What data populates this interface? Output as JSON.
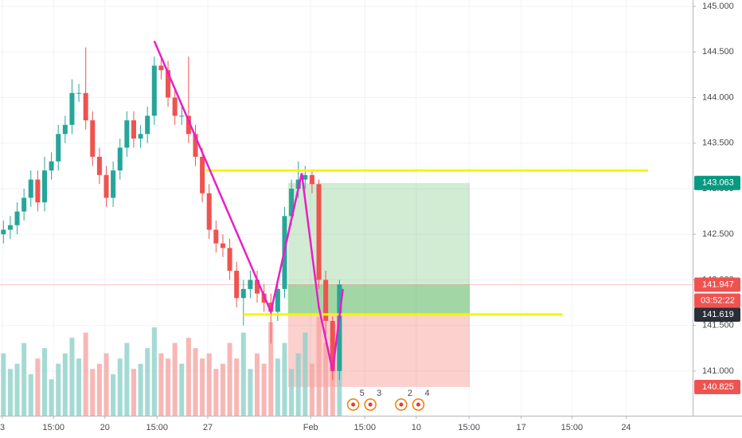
{
  "chart_data": {
    "type": "candlestick",
    "up_color": "#26a69a",
    "down_color": "#ef5350",
    "volume_up_color": "#8fd1c9",
    "volume_down_color": "#f5a5a3",
    "xlim": [
      -0.5,
      100.5
    ],
    "ylim": [
      140.51,
      145.07
    ],
    "vlim": [
      0,
      400
    ],
    "xticks": [
      {
        "value": -0.15,
        "label": "3"
      },
      {
        "value": 7.3,
        "label": "15:00"
      },
      {
        "value": 14.8,
        "label": "20"
      },
      {
        "value": 22.4,
        "label": "15:00"
      },
      {
        "value": 29.8,
        "label": "27"
      },
      {
        "value": 44.8,
        "label": "Feb"
      },
      {
        "value": 52.7,
        "label": "15:00"
      },
      {
        "value": 60.2,
        "label": "10"
      },
      {
        "value": 67.9,
        "label": "15:00"
      },
      {
        "value": 75.5,
        "label": "17"
      },
      {
        "value": 82.9,
        "label": "15:00"
      },
      {
        "value": 90.8,
        "label": "24"
      }
    ],
    "yticks": [
      {
        "value": 141,
        "label": "141.000"
      },
      {
        "value": 141.5,
        "label": "141.500"
      },
      {
        "value": 142,
        "label": "142.000"
      },
      {
        "value": 142.5,
        "label": "142.500"
      },
      {
        "value": 143,
        "label": "143.000"
      },
      {
        "value": 143.5,
        "label": "143.500"
      },
      {
        "value": 144,
        "label": "144.000"
      },
      {
        "value": 144.5,
        "label": "144.500"
      },
      {
        "value": 145,
        "label": "145.000"
      }
    ],
    "open": [
      142.5,
      142.55,
      142.6,
      142.75,
      142.9,
      143.1,
      142.85,
      143.2,
      143.3,
      143.6,
      143.7,
      144.05,
      144.05,
      143.75,
      143.35,
      143.15,
      142.9,
      143.2,
      143.45,
      143.75,
      143.55,
      143.6,
      143.8,
      144.35,
      144.3,
      144.0,
      143.8,
      143.8,
      143.6,
      143.35,
      142.95,
      142.55,
      142.4,
      142.35,
      142.1,
      141.8,
      141.9,
      142.0,
      141.85,
      141.75,
      141.65,
      141.9,
      142.7,
      143.0,
      143.1,
      143.15,
      143.05,
      142.0,
      141.55,
      141.0
    ],
    "high": [
      142.65,
      142.7,
      142.85,
      143.0,
      143.2,
      143.2,
      143.35,
      143.4,
      143.7,
      143.8,
      144.2,
      144.15,
      144.55,
      143.85,
      143.45,
      143.25,
      143.3,
      143.55,
      143.85,
      143.85,
      143.7,
      143.9,
      144.45,
      144.45,
      144.4,
      144.1,
      143.9,
      144.45,
      143.7,
      143.45,
      143.05,
      142.65,
      142.5,
      142.45,
      142.2,
      142.0,
      142.1,
      142.1,
      141.95,
      141.85,
      142.0,
      142.8,
      143.1,
      143.3,
      143.25,
      143.2,
      143.1,
      142.1,
      141.6,
      142.0
    ],
    "low": [
      142.4,
      142.45,
      142.5,
      142.65,
      142.8,
      142.75,
      142.75,
      143.1,
      143.2,
      143.5,
      143.6,
      143.95,
      143.65,
      143.25,
      143.05,
      142.8,
      142.8,
      143.1,
      143.35,
      143.45,
      143.45,
      143.5,
      143.7,
      144.2,
      143.9,
      143.7,
      143.7,
      143.5,
      143.25,
      142.85,
      142.45,
      142.3,
      142.25,
      142.0,
      141.7,
      141.5,
      141.8,
      141.75,
      141.65,
      141.3,
      141.55,
      141.8,
      142.6,
      142.9,
      143.0,
      142.95,
      141.9,
      141.3,
      140.9,
      140.9
    ],
    "close": [
      142.55,
      142.6,
      142.75,
      142.9,
      143.1,
      142.85,
      143.2,
      143.3,
      143.6,
      143.7,
      144.05,
      144.05,
      143.75,
      143.35,
      143.15,
      142.9,
      143.2,
      143.45,
      143.75,
      143.55,
      143.6,
      143.8,
      144.35,
      144.3,
      144.0,
      143.8,
      143.8,
      143.6,
      143.35,
      142.95,
      142.55,
      142.4,
      142.35,
      142.1,
      141.8,
      141.9,
      142.0,
      141.85,
      141.75,
      141.65,
      141.9,
      142.7,
      143.0,
      143.1,
      143.15,
      143.05,
      142.0,
      141.55,
      141.0,
      141.95
    ],
    "volume": [
      60,
      45,
      50,
      70,
      40,
      55,
      65,
      35,
      50,
      60,
      75,
      55,
      80,
      45,
      50,
      60,
      40,
      55,
      70,
      45,
      50,
      65,
      85,
      60,
      55,
      70,
      50,
      75,
      65,
      55,
      60,
      45,
      50,
      70,
      55,
      80,
      45,
      60,
      50,
      90,
      55,
      70,
      45,
      60,
      80,
      50,
      95,
      70,
      85,
      100
    ],
    "drawings": {
      "yellow_lines": [
        {
          "price": 143.2,
          "x_start": 29.5,
          "x_end": 94
        },
        {
          "price": 141.62,
          "x_start": 35,
          "x_end": 81.5
        }
      ],
      "pink_path": {
        "x": [
          22,
          39,
          43.5,
          46,
          48,
          49.5
        ],
        "price": [
          144.62,
          141.65,
          143.17,
          141.7,
          141.0,
          141.9
        ]
      },
      "position": {
        "x_start": 41.5,
        "x_end": 68,
        "entry": 141.619,
        "target": 143.063,
        "stop": 140.825,
        "current": 141.947
      }
    },
    "price_tags": [
      {
        "value": 143.063,
        "label": "143.063",
        "color": "#089981"
      },
      {
        "value": 141.947,
        "label": "141.947",
        "color": "#ef5350"
      },
      {
        "value": 141.619,
        "label": "141.619",
        "color": "#2a2e39"
      },
      {
        "value": 140.825,
        "label": "140.825",
        "color": "#ef5350"
      }
    ],
    "countdown": "03:52:22",
    "events": [
      {
        "x": 51,
        "label": "5"
      },
      {
        "x": 53.5,
        "label": "3"
      },
      {
        "x": 58,
        "label": "2"
      },
      {
        "x": 60.5,
        "label": "4"
      }
    ]
  }
}
